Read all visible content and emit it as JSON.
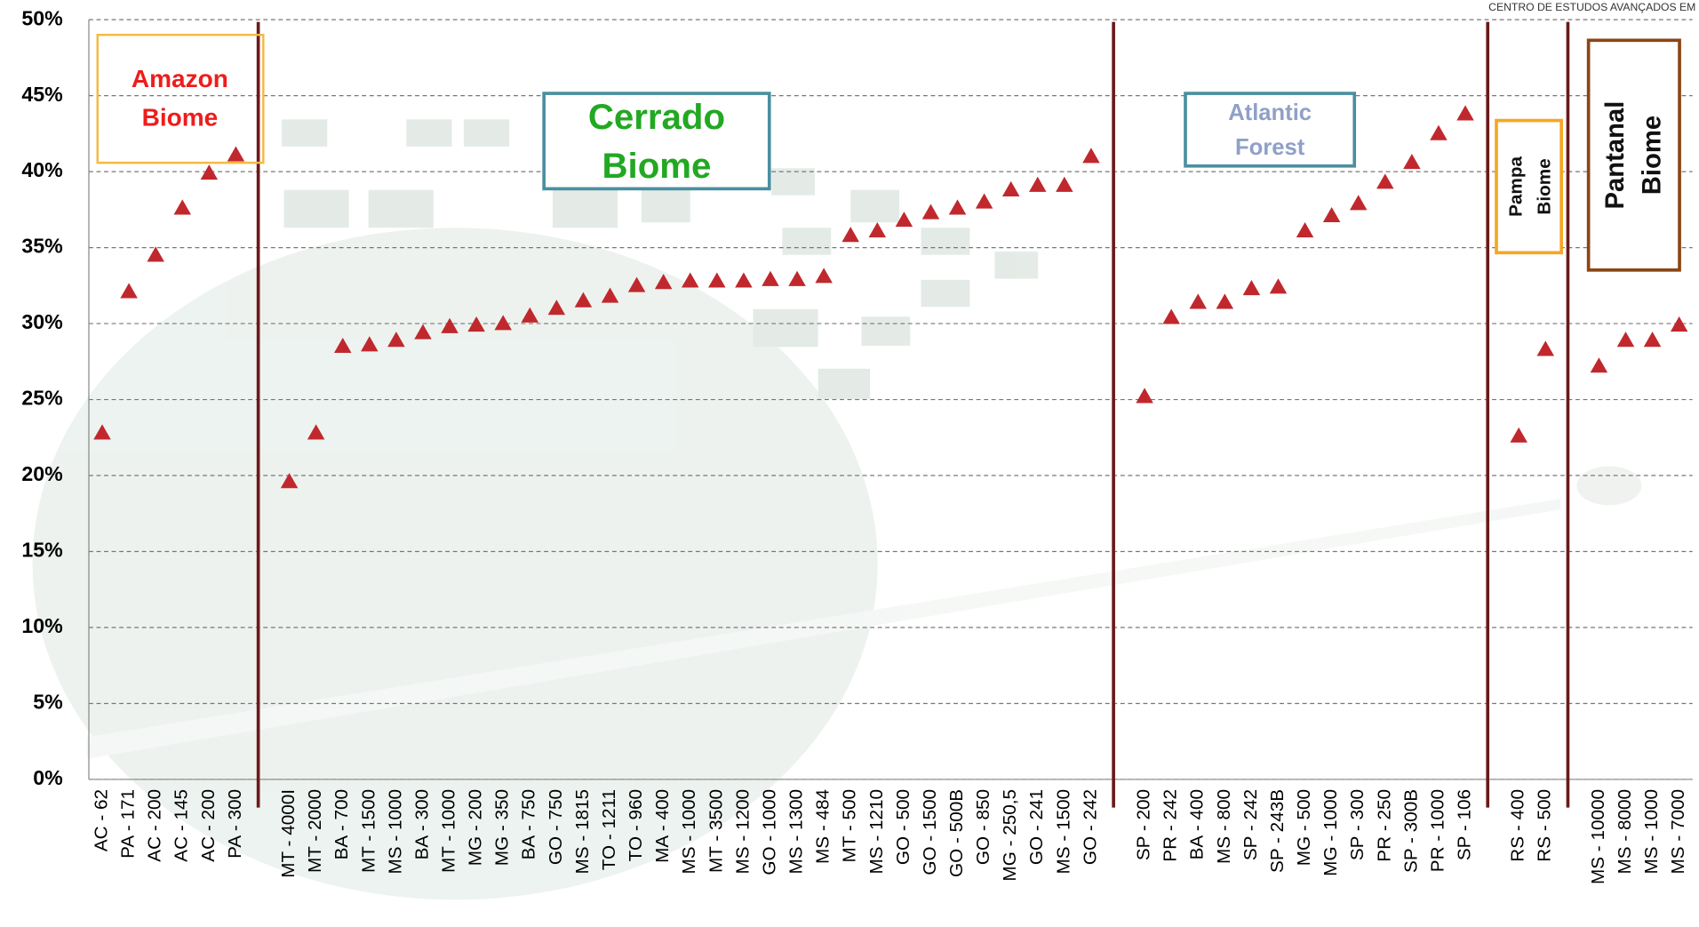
{
  "chart_data": {
    "type": "scatter-category",
    "watermark": "CENTRO DE ESTUDOS AVANÇADOS EM",
    "categories": [
      "AC - 62",
      "PA - 171",
      "AC - 200",
      "AC - 145",
      "AC - 200",
      "PA - 300",
      null,
      "MT - 4000I",
      "MT - 2000",
      "BA - 700",
      "MT - 1500",
      "MS - 1000",
      "BA - 300",
      "MT - 1000",
      "MG - 200",
      "MG - 350",
      "BA - 750",
      "GO - 750",
      "MS - 1815",
      "TO - 1211",
      "TO - 960",
      "MA - 400",
      "MS - 1000",
      "MT - 3500",
      "MS - 1200",
      "GO - 1000",
      "MS - 1300",
      "MS - 484",
      "MT - 500",
      "MS - 1210",
      "GO - 500",
      "GO - 1500",
      "GO - 500B",
      "GO - 850",
      "MG - 250,5",
      "GO - 241",
      "MS - 1500",
      "GO - 242",
      null,
      "SP - 200",
      "PR - 242",
      "BA - 400",
      "MS - 800",
      "SP - 242",
      "SP - 243B",
      "MG - 500",
      "MG - 1000",
      "SP - 300",
      "PR - 250",
      "SP - 300B",
      "PR - 1000",
      "SP - 106",
      null,
      "RS - 400",
      "RS - 500",
      null,
      "MS - 10000",
      "MS - 8000",
      "MS - 1000",
      "MS - 7000"
    ],
    "values": [
      22.8,
      32.1,
      34.5,
      37.6,
      39.9,
      41.1,
      null,
      19.6,
      22.8,
      28.5,
      28.6,
      28.9,
      29.4,
      29.8,
      29.9,
      30.0,
      30.5,
      31.0,
      31.5,
      31.8,
      32.5,
      32.7,
      32.8,
      32.8,
      32.8,
      32.9,
      32.9,
      33.1,
      35.8,
      36.1,
      36.8,
      37.3,
      37.6,
      38.0,
      38.8,
      39.1,
      39.1,
      41.0,
      null,
      25.2,
      30.4,
      31.4,
      31.4,
      32.3,
      32.4,
      36.1,
      37.1,
      37.9,
      39.3,
      40.6,
      42.5,
      43.8,
      null,
      22.6,
      28.3,
      null,
      27.2,
      28.9,
      28.9,
      29.9
    ],
    "color": "#c0282d",
    "ylim": [
      0,
      50
    ],
    "yticks": [
      {
        "value": 0,
        "label": "0%"
      },
      {
        "value": 5,
        "label": "5%"
      },
      {
        "value": 10,
        "label": "10%"
      },
      {
        "value": 15,
        "label": "15%"
      },
      {
        "value": 20,
        "label": "20%"
      },
      {
        "value": 25,
        "label": "25%"
      },
      {
        "value": 30,
        "label": "30%"
      },
      {
        "value": 35,
        "label": "35%"
      },
      {
        "value": 40,
        "label": "40%"
      },
      {
        "value": 45,
        "label": "45%"
      },
      {
        "value": 50,
        "label": "50%"
      }
    ],
    "grid": true,
    "annotations": [
      {
        "lines": [
          "Amazon",
          "Biome"
        ]
      },
      {
        "lines": [
          "Cerrado",
          "Biome"
        ]
      },
      {
        "lines": [
          "Atlantic",
          "Forest"
        ]
      },
      {
        "lines": [
          "Pampa",
          "Biome"
        ]
      },
      {
        "lines": [
          "Pantanal",
          "Biome"
        ]
      }
    ]
  }
}
